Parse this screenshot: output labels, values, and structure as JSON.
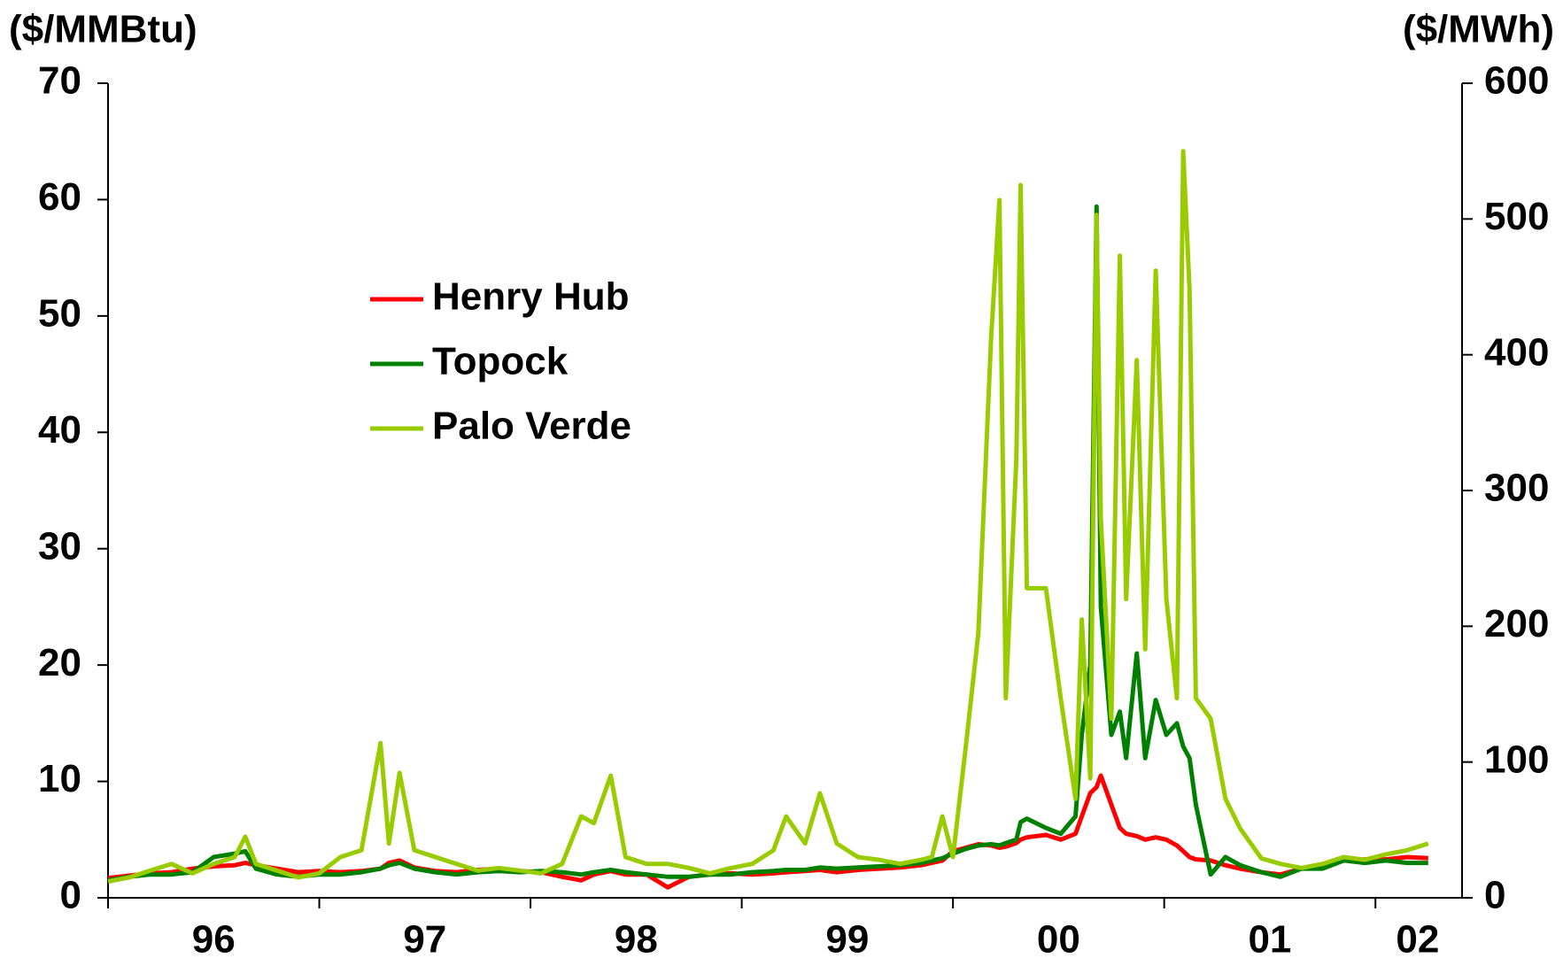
{
  "chart_data": {
    "type": "line",
    "y_label": "($/MMBtu)",
    "y2_label": "($/MWh)",
    "x": [
      1996.0,
      1996.1,
      1996.2,
      1996.3,
      1996.4,
      1996.5,
      1996.6,
      1996.65,
      1996.7,
      1996.8,
      1996.9,
      1997.0,
      1997.1,
      1997.2,
      1997.29,
      1997.33,
      1997.38,
      1997.45,
      1997.55,
      1997.65,
      1997.75,
      1997.85,
      1997.95,
      1998.05,
      1998.15,
      1998.24,
      1998.3,
      1998.38,
      1998.45,
      1998.55,
      1998.65,
      1998.75,
      1998.85,
      1998.95,
      1999.05,
      1999.15,
      1999.21,
      1999.3,
      1999.37,
      1999.45,
      1999.55,
      1999.65,
      1999.75,
      1999.85,
      1999.9,
      1999.95,
      2000.0,
      2000.06,
      2000.12,
      2000.18,
      2000.22,
      2000.25,
      2000.3,
      2000.32,
      2000.35,
      2000.44,
      2000.51,
      2000.58,
      2000.61,
      2000.65,
      2000.68,
      2000.7,
      2000.75,
      2000.79,
      2000.82,
      2000.87,
      2000.91,
      2000.96,
      2001.01,
      2001.06,
      2001.09,
      2001.12,
      2001.15,
      2001.22,
      2001.29,
      2001.36,
      2001.46,
      2001.55,
      2001.65,
      2001.75,
      2001.85,
      2001.95,
      2002.05,
      2002.15,
      2002.25
    ],
    "xlim": [
      1996.0,
      2002.41
    ],
    "xticks": [
      {
        "value": 1996.5,
        "label": "96"
      },
      {
        "value": 1997.5,
        "label": "97"
      },
      {
        "value": 1998.5,
        "label": "98"
      },
      {
        "value": 1999.5,
        "label": "99"
      },
      {
        "value": 2000.5,
        "label": "00"
      },
      {
        "value": 2001.5,
        "label": "01"
      },
      {
        "value": 2002.2,
        "label": "02"
      }
    ],
    "xtick_marks": [
      1996,
      1997,
      1998,
      1999,
      2000,
      2001,
      2002
    ],
    "ylim": [
      0,
      70
    ],
    "yticks": [
      0,
      10,
      20,
      30,
      40,
      50,
      60,
      70
    ],
    "y2lim": [
      0,
      600
    ],
    "y2ticks": [
      0,
      100,
      200,
      300,
      400,
      500,
      600
    ],
    "series": [
      {
        "name": "Henry Hub",
        "color": "#ff0000",
        "values": [
          1.7,
          1.9,
          2.1,
          2.2,
          2.5,
          2.7,
          2.8,
          3,
          2.8,
          2.5,
          2.2,
          2.3,
          2.2,
          2.3,
          2.5,
          3,
          3.2,
          2.6,
          2.3,
          2.2,
          2.4,
          2.5,
          2.3,
          2.2,
          1.8,
          1.5,
          2,
          2.3,
          2,
          2,
          0.9,
          1.8,
          2,
          2.1,
          2,
          2.1,
          2.2,
          2.3,
          2.4,
          2.2,
          2.4,
          2.5,
          2.6,
          2.8,
          3,
          3.2,
          4,
          4.3,
          4.6,
          4.5,
          4.3,
          4.4,
          4.7,
          5,
          5.2,
          5.4,
          5,
          5.5,
          7,
          9,
          9.5,
          10.5,
          8,
          6,
          5.5,
          5.3,
          5,
          5.2,
          5,
          4.5,
          4,
          3.5,
          3.3,
          3.2,
          2.8,
          2.5,
          2.2,
          2,
          2.5,
          2.8,
          3.2,
          3.3,
          3.3,
          3.5,
          3.4
        ]
      },
      {
        "name": "Topock",
        "color": "#008000",
        "values": [
          1.5,
          1.8,
          2,
          2,
          2.2,
          3.5,
          3.8,
          4,
          2.5,
          2,
          1.8,
          2,
          2,
          2.2,
          2.5,
          2.8,
          3,
          2.5,
          2.2,
          2,
          2.2,
          2.3,
          2.2,
          2.3,
          2.2,
          2,
          2.2,
          2.4,
          2.2,
          2,
          1.8,
          1.8,
          2,
          2,
          2.2,
          2.3,
          2.4,
          2.4,
          2.6,
          2.5,
          2.6,
          2.7,
          2.8,
          3,
          3.2,
          3.4,
          3.8,
          4.2,
          4.5,
          4.6,
          4.5,
          4.7,
          5,
          6.5,
          6.8,
          6,
          5.5,
          7,
          14,
          20,
          59.4,
          25,
          14,
          16,
          12,
          21,
          12,
          17,
          14,
          15,
          13,
          12,
          8,
          2,
          3.5,
          2.8,
          2.2,
          1.8,
          2.5,
          2.5,
          3.2,
          3,
          3.2,
          3,
          3
        ]
      },
      {
        "name": "Palo Verde",
        "color": "#99cc00",
        "axis": "y2",
        "values": [
          12,
          15,
          20,
          25,
          18,
          25,
          30,
          45,
          25,
          20,
          15,
          18,
          30,
          35,
          114,
          40,
          92,
          35,
          30,
          25,
          20,
          22,
          20,
          18,
          25,
          60,
          55,
          90,
          30,
          25,
          25,
          22,
          18,
          22,
          25,
          35,
          60,
          40,
          77,
          40,
          30,
          28,
          25,
          28,
          30,
          60,
          30,
          110,
          195,
          411,
          514,
          147,
          323,
          525,
          228,
          228,
          147,
          73,
          205,
          88,
          503,
          279,
          132,
          473,
          220,
          396,
          183,
          462,
          220,
          147,
          550,
          448,
          147,
          132,
          73,
          51,
          29,
          25,
          22,
          25,
          30,
          28,
          32,
          35,
          40
        ]
      }
    ]
  }
}
